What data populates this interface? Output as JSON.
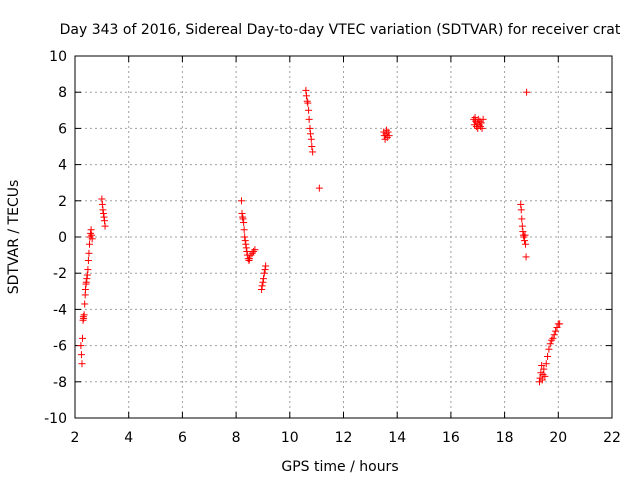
{
  "chart_data": {
    "type": "scatter",
    "title": "Day 343 of 2016, Sidereal Day-to-day VTEC variation (SDTVAR) for receiver crat",
    "xlabel": "GPS time / hours",
    "ylabel": "SDTVAR / TECUs",
    "xlim": [
      2,
      22
    ],
    "ylim": [
      -10,
      10
    ],
    "xticks": [
      "2",
      "4",
      "6",
      "8",
      "10",
      "12",
      "14",
      "16",
      "18",
      "20",
      "22"
    ],
    "yticks": [
      "-10",
      "-8",
      "-6",
      "-4",
      "-2",
      "0",
      "2",
      "4",
      "6",
      "8",
      "10"
    ],
    "grid": true,
    "marker": "+",
    "color": "#ff0000",
    "series": [
      {
        "name": "SDTVAR",
        "points": [
          [
            2.22,
            -6.0
          ],
          [
            2.24,
            -6.5
          ],
          [
            2.26,
            -7.0
          ],
          [
            2.28,
            -5.6
          ],
          [
            2.3,
            -4.6
          ],
          [
            2.31,
            -4.4
          ],
          [
            2.32,
            -4.5
          ],
          [
            2.34,
            -4.3
          ],
          [
            2.36,
            -3.7
          ],
          [
            2.38,
            -3.2
          ],
          [
            2.39,
            -2.9
          ],
          [
            2.41,
            -2.6
          ],
          [
            2.42,
            -2.5
          ],
          [
            2.44,
            -2.3
          ],
          [
            2.46,
            -2.1
          ],
          [
            2.48,
            -1.8
          ],
          [
            2.5,
            -1.3
          ],
          [
            2.52,
            -0.9
          ],
          [
            2.54,
            -0.4
          ],
          [
            2.56,
            0.0
          ],
          [
            2.58,
            0.2
          ],
          [
            2.6,
            0.4
          ],
          [
            2.62,
            0.1
          ],
          [
            2.64,
            -0.1
          ],
          [
            3.0,
            2.1
          ],
          [
            3.02,
            1.8
          ],
          [
            3.04,
            1.5
          ],
          [
            3.06,
            1.3
          ],
          [
            3.08,
            1.1
          ],
          [
            3.1,
            0.9
          ],
          [
            3.12,
            0.6
          ],
          [
            8.2,
            2.0
          ],
          [
            8.22,
            1.3
          ],
          [
            8.24,
            1.1
          ],
          [
            8.26,
            1.0
          ],
          [
            8.28,
            0.8
          ],
          [
            8.3,
            0.4
          ],
          [
            8.32,
            0.0
          ],
          [
            8.34,
            -0.2
          ],
          [
            8.36,
            -0.4
          ],
          [
            8.38,
            -0.6
          ],
          [
            8.4,
            -0.8
          ],
          [
            8.42,
            -1.0
          ],
          [
            8.45,
            -1.2
          ],
          [
            8.48,
            -1.3
          ],
          [
            8.5,
            -1.2
          ],
          [
            8.55,
            -1.0
          ],
          [
            8.6,
            -0.9
          ],
          [
            8.65,
            -0.8
          ],
          [
            8.7,
            -0.7
          ],
          [
            8.95,
            -2.9
          ],
          [
            8.97,
            -2.7
          ],
          [
            9.0,
            -2.5
          ],
          [
            9.02,
            -2.3
          ],
          [
            9.05,
            -2.0
          ],
          [
            9.08,
            -1.8
          ],
          [
            9.1,
            -1.6
          ],
          [
            10.6,
            8.1
          ],
          [
            10.62,
            7.8
          ],
          [
            10.65,
            7.5
          ],
          [
            10.67,
            7.4
          ],
          [
            10.7,
            7.0
          ],
          [
            10.72,
            6.5
          ],
          [
            10.75,
            6.0
          ],
          [
            10.77,
            5.7
          ],
          [
            10.8,
            5.4
          ],
          [
            10.82,
            5.0
          ],
          [
            10.85,
            4.7
          ],
          [
            11.1,
            2.7
          ],
          [
            13.5,
            5.8
          ],
          [
            13.52,
            5.6
          ],
          [
            13.55,
            5.4
          ],
          [
            13.58,
            5.7
          ],
          [
            13.6,
            5.9
          ],
          [
            13.63,
            5.5
          ],
          [
            13.66,
            5.8
          ],
          [
            13.7,
            5.6
          ],
          [
            16.85,
            6.5
          ],
          [
            16.88,
            6.2
          ],
          [
            16.9,
            6.6
          ],
          [
            16.92,
            6.4
          ],
          [
            16.95,
            6.1
          ],
          [
            16.98,
            6.3
          ],
          [
            17.0,
            6.0
          ],
          [
            17.02,
            6.5
          ],
          [
            17.05,
            6.2
          ],
          [
            17.08,
            6.4
          ],
          [
            17.1,
            6.1
          ],
          [
            17.13,
            6.3
          ],
          [
            17.16,
            6.0
          ],
          [
            17.2,
            6.5
          ],
          [
            18.6,
            1.8
          ],
          [
            18.62,
            1.5
          ],
          [
            18.64,
            1.0
          ],
          [
            18.66,
            0.6
          ],
          [
            18.68,
            0.3
          ],
          [
            18.7,
            0.1
          ],
          [
            18.72,
            0.0
          ],
          [
            18.74,
            -0.2
          ],
          [
            18.76,
            0.1
          ],
          [
            18.78,
            -0.4
          ],
          [
            18.8,
            -1.1
          ],
          [
            18.82,
            8.0
          ],
          [
            19.3,
            -8.0
          ],
          [
            19.32,
            -7.8
          ],
          [
            19.35,
            -7.5
          ],
          [
            19.38,
            -7.1
          ],
          [
            19.4,
            -7.9
          ],
          [
            19.43,
            -7.6
          ],
          [
            19.46,
            -7.3
          ],
          [
            19.5,
            -7.7
          ],
          [
            19.55,
            -7.0
          ],
          [
            19.6,
            -6.6
          ],
          [
            19.65,
            -6.2
          ],
          [
            19.7,
            -5.9
          ],
          [
            19.75,
            -5.7
          ],
          [
            19.8,
            -5.6
          ],
          [
            19.85,
            -5.4
          ],
          [
            19.9,
            -5.2
          ],
          [
            19.95,
            -5.0
          ],
          [
            20.0,
            -4.8
          ],
          [
            20.05,
            -4.8
          ]
        ]
      }
    ]
  }
}
